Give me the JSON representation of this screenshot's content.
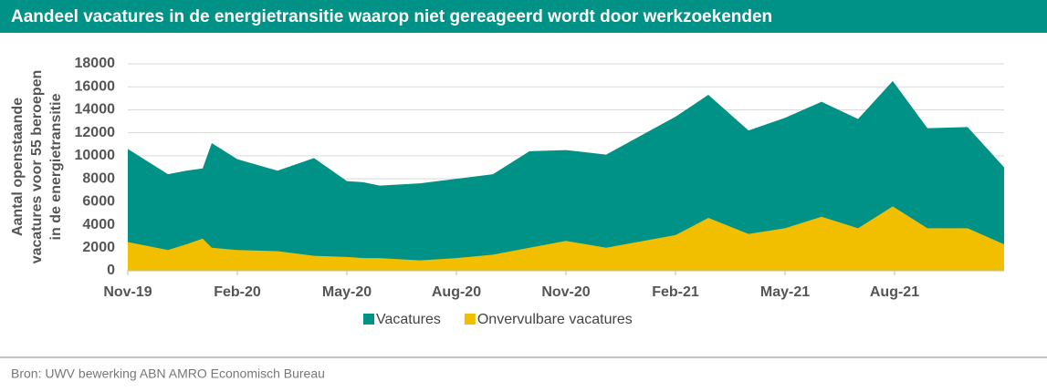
{
  "chart_data": {
    "type": "area",
    "title": "Aandeel vacatures in de energietransitie waarop niet gereageerd wordt door werkzoekenden",
    "ylabel": [
      "Aantal openstaande",
      "vacatures voor 55 beroepen",
      "in de energietransitie"
    ],
    "source": "Bron: UWV bewerking ABN AMRO Economisch Bureau",
    "x": [
      0,
      1.1,
      1.6,
      2.05,
      2.3,
      3,
      4.1,
      5.1,
      6,
      6.45,
      6.9,
      8,
      9,
      10,
      11,
      12,
      13.1,
      15,
      15.9,
      17,
      18,
      19,
      20,
      20.95,
      21.9,
      23,
      24
    ],
    "series": [
      {
        "name": "Vacatures",
        "color": "#009286",
        "values": [
          10600,
          8400,
          8700,
          8900,
          11100,
          9700,
          8700,
          9800,
          7800,
          7700,
          7400,
          7600,
          8000,
          8400,
          10400,
          10500,
          10100,
          13400,
          15300,
          12200,
          13300,
          14700,
          13200,
          16500,
          12400,
          12500,
          9000
        ]
      },
      {
        "name": "Onvervulbare vacatures",
        "color": "#f2bf00",
        "values": [
          2500,
          1800,
          2300,
          2800,
          2000,
          1800,
          1700,
          1300,
          1200,
          1100,
          1100,
          900,
          1100,
          1400,
          2000,
          2600,
          2000,
          3100,
          4600,
          3200,
          3700,
          4700,
          3700,
          5600,
          3700,
          3700,
          2300
        ]
      }
    ],
    "xlim": [
      0,
      24
    ],
    "xticks": [
      {
        "value": 0,
        "label": "Nov-19"
      },
      {
        "value": 3,
        "label": "Feb-20"
      },
      {
        "value": 6,
        "label": "May-20"
      },
      {
        "value": 9,
        "label": "Aug-20"
      },
      {
        "value": 12,
        "label": "Nov-20"
      },
      {
        "value": 15,
        "label": "Feb-21"
      },
      {
        "value": 18,
        "label": "May-21"
      },
      {
        "value": 21,
        "label": "Aug-21"
      }
    ],
    "ylim": [
      0,
      18000
    ],
    "yticks": [
      0,
      2000,
      4000,
      6000,
      8000,
      10000,
      12000,
      14000,
      16000,
      18000
    ],
    "grid": true,
    "legend": "bottom"
  }
}
